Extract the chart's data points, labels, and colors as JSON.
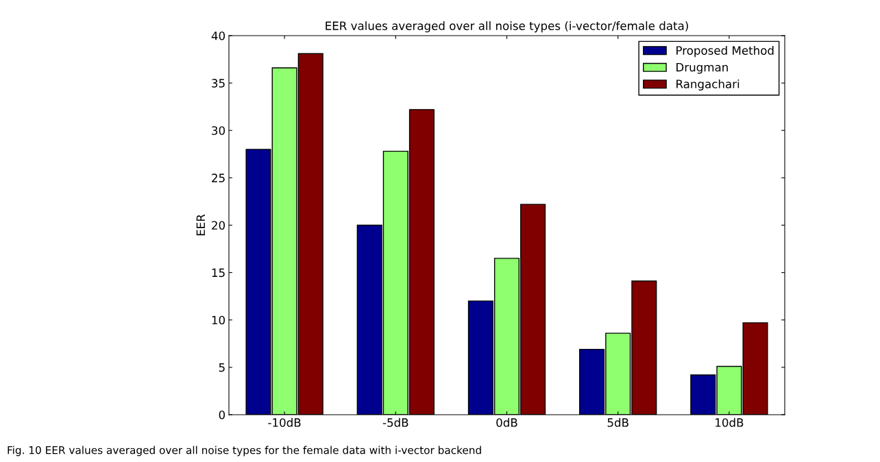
{
  "chart_data": {
    "type": "bar",
    "title": "EER values averaged over all noise types (i-vector/female data)",
    "ylabel": "EER",
    "categories": [
      "-10dB",
      "-5dB",
      "0dB",
      "5dB",
      "10dB"
    ],
    "series": [
      {
        "name": "Proposed Method",
        "color": "#00008f",
        "values": [
          28.0,
          20.0,
          12.0,
          6.9,
          4.2
        ]
      },
      {
        "name": "Drugman",
        "color": "#8fff6f",
        "values": [
          36.6,
          27.8,
          16.5,
          8.6,
          5.1
        ]
      },
      {
        "name": "Rangachari",
        "color": "#800000",
        "values": [
          38.1,
          32.2,
          22.2,
          14.1,
          9.7
        ]
      }
    ],
    "ylim": [
      0,
      40
    ],
    "yticks": [
      0,
      5,
      10,
      15,
      20,
      25,
      30,
      35,
      40
    ],
    "grid": false,
    "legend": "top right",
    "annotations": [
      "Fig. 10 EER values averaged over all noise types for the female data with i-vector backend"
    ]
  }
}
